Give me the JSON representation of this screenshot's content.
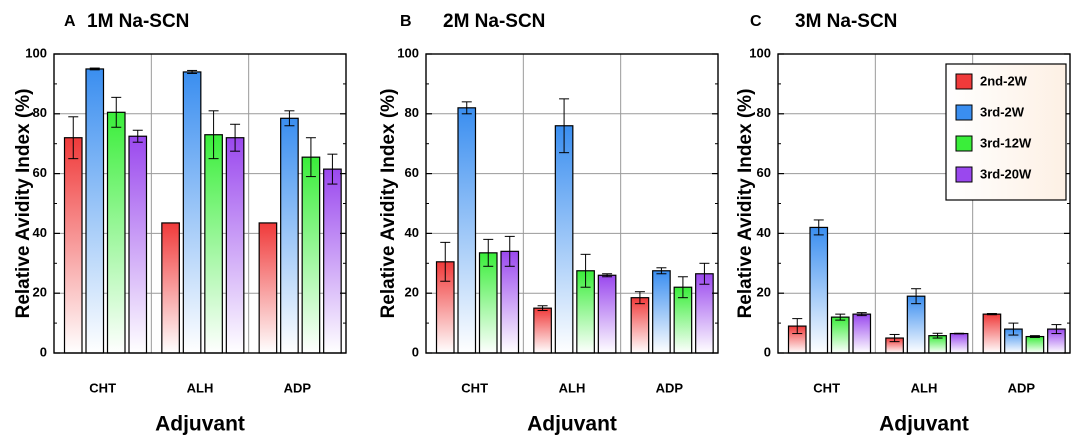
{
  "chart_data": [
    {
      "type": "bar",
      "panel": "A",
      "title": "1M Na-SCN",
      "xlabel": "Adjuvant",
      "ylabel": "Relative Avidity Index (%)",
      "ylim": [
        0,
        100
      ],
      "yticks": [
        0,
        20,
        40,
        60,
        80,
        100
      ],
      "grid": true,
      "categories": [
        "CHT",
        "ALH",
        "ADP"
      ],
      "series": [
        {
          "name": "2nd-2W",
          "values": [
            72,
            43.5,
            43.5
          ],
          "errors": [
            7,
            0,
            0
          ]
        },
        {
          "name": "3rd-2W",
          "values": [
            95,
            94,
            78.5
          ],
          "errors": [
            0.3,
            0.5,
            2.5
          ]
        },
        {
          "name": "3rd-12W",
          "values": [
            80.5,
            73,
            65.5
          ],
          "errors": [
            5,
            8,
            6.5
          ]
        },
        {
          "name": "3rd-20W",
          "values": [
            72.5,
            72,
            61.5
          ],
          "errors": [
            2,
            4.5,
            5
          ]
        }
      ]
    },
    {
      "type": "bar",
      "panel": "B",
      "title": "2M Na-SCN",
      "xlabel": "Adjuvant",
      "ylabel": "Relative Avidity Index (%)",
      "ylim": [
        0,
        100
      ],
      "yticks": [
        0,
        20,
        40,
        60,
        80,
        100
      ],
      "grid": true,
      "categories": [
        "CHT",
        "ALH",
        "ADP"
      ],
      "series": [
        {
          "name": "2nd-2W",
          "values": [
            30.5,
            15,
            18.5
          ],
          "errors": [
            6.5,
            0.8,
            2
          ]
        },
        {
          "name": "3rd-2W",
          "values": [
            82,
            76,
            27.5
          ],
          "errors": [
            2,
            9,
            1
          ]
        },
        {
          "name": "3rd-12W",
          "values": [
            33.5,
            27.5,
            22
          ],
          "errors": [
            4.5,
            5.5,
            3.5
          ]
        },
        {
          "name": "3rd-20W",
          "values": [
            34,
            26,
            26.5
          ],
          "errors": [
            5,
            0.5,
            3.5
          ]
        }
      ]
    },
    {
      "type": "bar",
      "panel": "C",
      "title": "3M Na-SCN",
      "xlabel": "Adjuvant",
      "ylabel": "Relative Avidity Index (%)",
      "ylim": [
        0,
        100
      ],
      "yticks": [
        0,
        20,
        40,
        60,
        80,
        100
      ],
      "grid": true,
      "legend_position": "top-right",
      "categories": [
        "CHT",
        "ALH",
        "ADP"
      ],
      "series": [
        {
          "name": "2nd-2W",
          "values": [
            9,
            5,
            13
          ],
          "errors": [
            2.5,
            1.2,
            0.2
          ]
        },
        {
          "name": "3rd-2W",
          "values": [
            42,
            19,
            8
          ],
          "errors": [
            2.5,
            2.5,
            2
          ]
        },
        {
          "name": "3rd-12W",
          "values": [
            12,
            5.8,
            5.5
          ],
          "errors": [
            1,
            0.8,
            0.3
          ]
        },
        {
          "name": "3rd-20W",
          "values": [
            13,
            6.5,
            8
          ],
          "errors": [
            0.5,
            0.1,
            1.5
          ]
        }
      ]
    }
  ],
  "colors": {
    "2nd-2W": "#f03a3a",
    "3rd-2W": "#3a8ef0",
    "3rd-12W": "#3aee3a",
    "3rd-20W": "#9a48ee",
    "legend_bg": "#fdf0e4"
  }
}
